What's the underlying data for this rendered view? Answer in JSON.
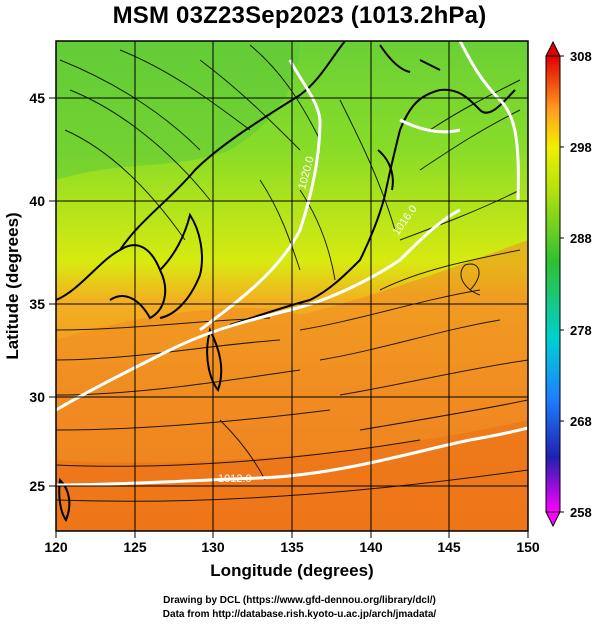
{
  "title": "MSM 03Z23Sep2023 (1013.2hPa)",
  "map": {
    "lon_range": [
      120,
      150
    ],
    "lat_range": [
      22.5,
      48
    ],
    "x_ticks": [
      120,
      125,
      130,
      135,
      140,
      145,
      150
    ],
    "y_ticks": [
      25,
      30,
      35,
      40,
      45
    ],
    "xlabel": "Longitude (degrees)",
    "ylabel": "Latitude  (degrees)",
    "pressure_contours": [
      {
        "label": "1012.0"
      },
      {
        "label": "1016.0"
      },
      {
        "label": "1020.0"
      }
    ]
  },
  "colorbar": {
    "min": 258,
    "max": 308,
    "tick_labels": [
      "308",
      "298",
      "288",
      "278",
      "268",
      "258"
    ],
    "colors": [
      "#ff00ff",
      "#1010a0",
      "#1e90ff",
      "#00d0d0",
      "#30c030",
      "#a8e010",
      "#f0f000",
      "#ffa020",
      "#ff5000",
      "#e00000"
    ]
  },
  "credits": {
    "line1": "Drawing by DCL (https://www.gfd-dennou.org/library/dcl/)",
    "line2": "Data from http://database.rish.kyoto-u.ac.jp/arch/jmadata/"
  }
}
